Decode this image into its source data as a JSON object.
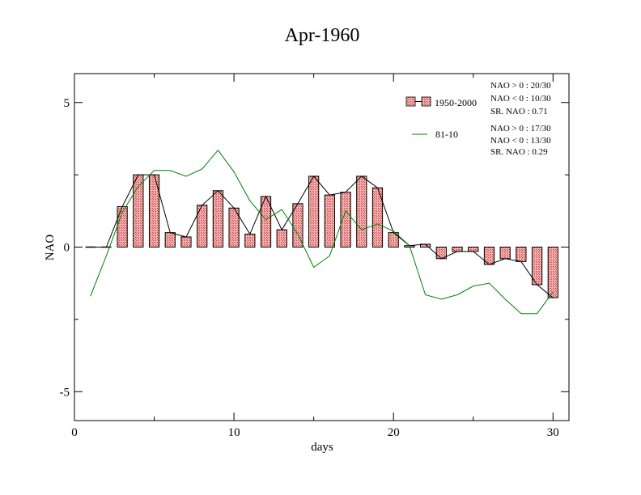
{
  "chart_data": {
    "type": "bar",
    "title": "Apr-1960",
    "xlabel": "days",
    "ylabel": "NAO",
    "xlim": [
      0,
      31
    ],
    "ylim": [
      -6,
      6
    ],
    "xticks": [
      0,
      10,
      20,
      30
    ],
    "yticks": [
      -5,
      0,
      5
    ],
    "x": [
      1,
      2,
      3,
      4,
      5,
      6,
      7,
      8,
      9,
      10,
      11,
      12,
      13,
      14,
      15,
      16,
      17,
      18,
      19,
      20,
      21,
      22,
      23,
      24,
      25,
      26,
      27,
      28,
      29,
      30
    ],
    "series": [
      {
        "name": "1950-2000",
        "kind": "bar",
        "color": "#e06666",
        "values": [
          0.0,
          0.0,
          1.4,
          2.5,
          2.5,
          0.5,
          0.35,
          1.45,
          1.95,
          1.35,
          0.45,
          1.75,
          0.6,
          1.5,
          2.45,
          1.8,
          1.9,
          2.45,
          2.05,
          0.5,
          0.05,
          0.1,
          -0.4,
          -0.15,
          -0.15,
          -0.6,
          -0.4,
          -0.5,
          -1.3,
          -1.75
        ]
      },
      {
        "name": "81-10",
        "kind": "line",
        "color": "#008000",
        "values": [
          -1.7,
          -0.3,
          1.2,
          2.1,
          2.65,
          2.65,
          2.45,
          2.7,
          3.35,
          2.6,
          1.6,
          0.95,
          1.3,
          0.45,
          -0.7,
          -0.3,
          1.25,
          0.6,
          0.8,
          0.55,
          0.05,
          -1.65,
          -1.8,
          -1.65,
          -1.35,
          -1.25,
          -1.8,
          -2.3,
          -2.3,
          -1.55
        ]
      }
    ],
    "legend_position": "top-right",
    "stats": [
      {
        "nao_pos": "NAO > 0 :  20/30",
        "nao_neg": "NAO < 0 :  10/30",
        "sr": "SR. NAO :  0.71"
      },
      {
        "nao_pos": "NAO > 0 :  17/30",
        "nao_neg": "NAO < 0 :  13/30",
        "sr": "SR. NAO :  0.29"
      }
    ],
    "grid": false
  }
}
